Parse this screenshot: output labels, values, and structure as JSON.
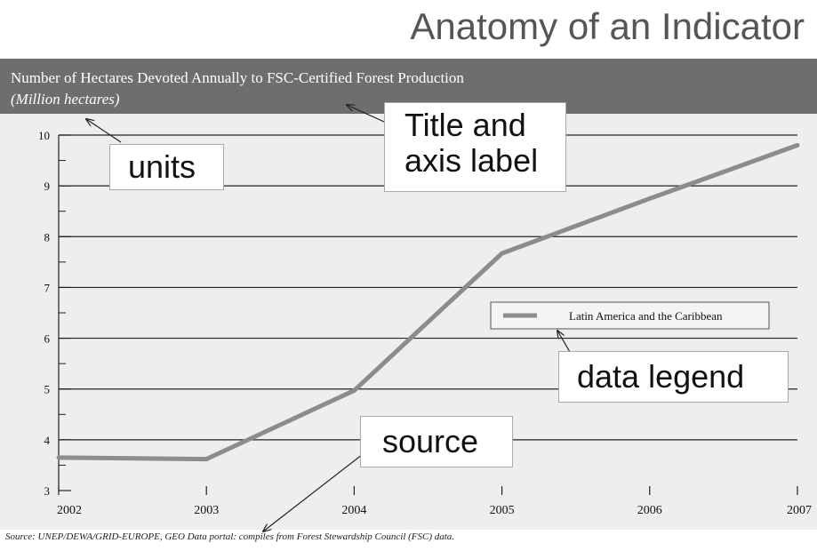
{
  "slide_title": "Anatomy of an Indicator",
  "chart_data": {
    "type": "line",
    "title": "Number of Hectares Devoted Annually to FSC-Certified Forest Production",
    "units": "(Million hectares)",
    "xlabel": "",
    "ylabel": "",
    "x": [
      2002,
      2003,
      2004,
      2005,
      2006,
      2007
    ],
    "x_tick_labels": [
      "2002",
      "2003",
      "2004",
      "2005",
      "2006",
      "2007"
    ],
    "xlim": [
      2002,
      2007
    ],
    "ylim": [
      3,
      10
    ],
    "y_ticks": [
      3,
      4,
      5,
      6,
      7,
      8,
      9,
      10
    ],
    "y_tick_labels": [
      "3",
      "4",
      "5",
      "6",
      "7",
      "8",
      "9",
      "10"
    ],
    "grid": "horizontal, major ticks",
    "series": [
      {
        "name": "Latin America and the Caribbean",
        "values": [
          3.65,
          3.62,
          4.97,
          7.67,
          8.75,
          9.8
        ],
        "color": "#8c8c8c"
      }
    ],
    "legend_position": "middle-right",
    "source": "Source: UNEP/DEWA/GRID-EUROPE, GEO Data portal: compiles from Forest Stewardship Council (FSC) data."
  },
  "callouts": {
    "units": "units",
    "title_and_axis_label": [
      "Title and",
      "axis label"
    ],
    "data_legend": "data legend",
    "source": "source"
  },
  "colors": {
    "title_bar": "#6e6e6e",
    "plot_background": "#eeeeee",
    "series_line": "#8c8c8c",
    "gridline": "#222222"
  }
}
